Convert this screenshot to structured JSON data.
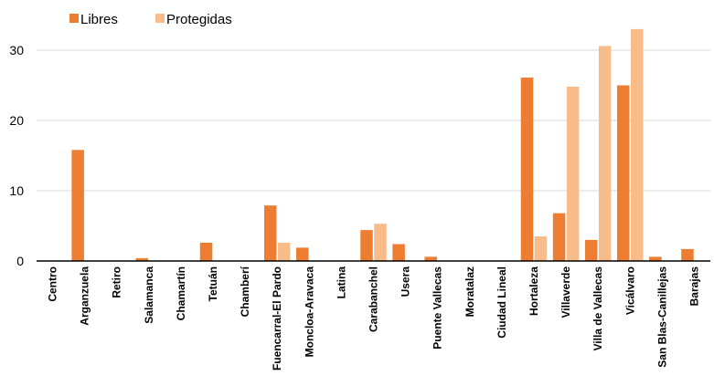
{
  "chart_data": {
    "type": "bar",
    "categories": [
      "Centro",
      "Arganzuela",
      "Retiro",
      "Salamanca",
      "Chamartín",
      "Tetuán",
      "Chamberí",
      "Fuencarral-El Pardo",
      "Moncloa-Aravaca",
      "Latina",
      "Carabanchel",
      "Usera",
      "Puente Vallecas",
      "Moratalaz",
      "Ciudad Lineal",
      "Hortaleza",
      "Villaverde",
      "Villa de Vallecas",
      "Vicálvaro",
      "San Blas-Canillejas",
      "Barajas"
    ],
    "series": [
      {
        "name": "Libres",
        "color": "#ED7D31",
        "values": [
          0,
          15.8,
          0,
          0.4,
          0,
          2.6,
          0,
          7.9,
          1.9,
          0,
          4.4,
          2.4,
          0.6,
          0,
          0,
          26.1,
          6.8,
          3.0,
          25.0,
          0.6,
          1.7
        ]
      },
      {
        "name": "Protegidas",
        "color": "#F8BC8B",
        "values": [
          0,
          0,
          0,
          0,
          0,
          0,
          0,
          2.6,
          0,
          0,
          5.3,
          0,
          0,
          0,
          0,
          3.5,
          24.8,
          30.6,
          33.0,
          0,
          0
        ]
      }
    ],
    "yticks": [
      0,
      10,
      20,
      30
    ],
    "ylim": [
      0,
      33
    ],
    "grid": true,
    "legend": "top-left"
  }
}
